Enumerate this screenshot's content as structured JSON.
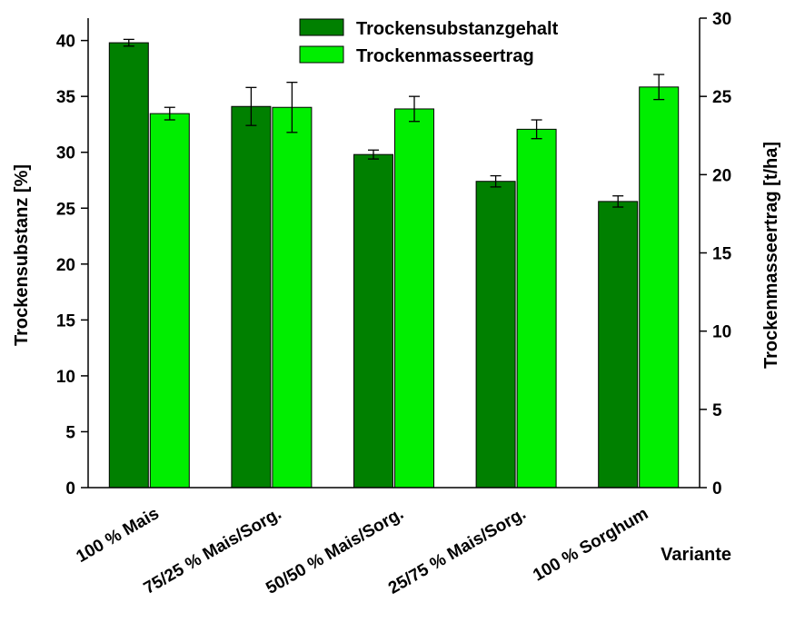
{
  "chart_data": {
    "type": "bar",
    "categories": [
      "100 % Mais",
      "75/25 % Mais/Sorg.",
      "50/50 % Mais/Sorg.",
      "25/75 % Mais/Sorg.",
      "100 % Sorghum"
    ],
    "xlabel": "Variante",
    "legend_position": "top-center",
    "grid": false,
    "series": [
      {
        "name": "Trockensubstanzgehalt",
        "axis": "left",
        "color": "#008000",
        "values": [
          39.8,
          34.1,
          29.8,
          27.4,
          25.6
        ],
        "errors": [
          0.3,
          1.7,
          0.4,
          0.5,
          0.5
        ]
      },
      {
        "name": "Trockenmasseertrag",
        "axis": "right",
        "color": "#00ee00",
        "values": [
          23.9,
          24.3,
          24.2,
          22.9,
          25.6
        ],
        "errors": [
          0.4,
          1.6,
          0.8,
          0.6,
          0.8
        ]
      }
    ],
    "y_left": {
      "label": "Trockensubstanz [%]",
      "ylim": [
        0,
        42
      ],
      "ticks": [
        0,
        5,
        10,
        15,
        20,
        25,
        30,
        35,
        40
      ]
    },
    "y_right": {
      "label": "Trockenmasseertrag [t/ha]",
      "ylim": [
        0,
        30
      ],
      "ticks": [
        0,
        5,
        10,
        15,
        20,
        25,
        30
      ]
    }
  }
}
